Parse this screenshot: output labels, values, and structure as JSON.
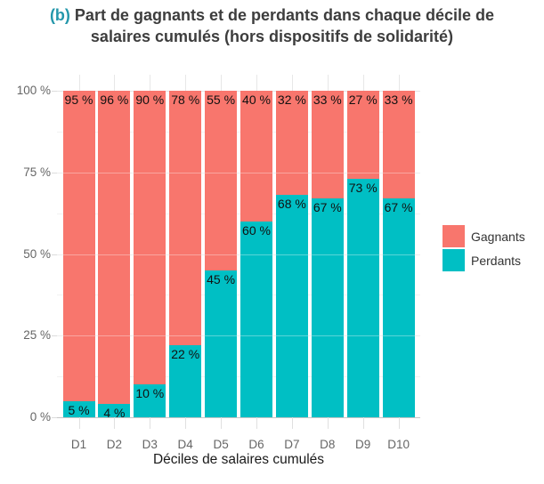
{
  "title": {
    "prefix": "(b)",
    "main": "Part de gagnants et de perdants dans chaque décile de salaires cumulés (hors dispositifs de solidarité)",
    "prefix_color": "#2497ab"
  },
  "chart_data": {
    "type": "bar",
    "stacked": true,
    "orientation": "vertical",
    "categories": [
      "D1",
      "D2",
      "D3",
      "D4",
      "D5",
      "D6",
      "D7",
      "D8",
      "D9",
      "D10"
    ],
    "series": [
      {
        "name": "Gagnants",
        "color": "#F8766D",
        "values": [
          95,
          96,
          90,
          78,
          55,
          40,
          32,
          33,
          27,
          33
        ],
        "labels": [
          "95 %",
          "96 %",
          "90 %",
          "78 %",
          "55 %",
          "40 %",
          "32 %",
          "33 %",
          "27 %",
          "33 %"
        ]
      },
      {
        "name": "Perdants",
        "color": "#00BFC4",
        "values": [
          5,
          4,
          10,
          22,
          45,
          60,
          68,
          67,
          73,
          67
        ],
        "labels": [
          "5 %",
          "4 %",
          "10 %",
          "22 %",
          "45 %",
          "60 %",
          "68 %",
          "67 %",
          "73 %",
          "67 %"
        ]
      }
    ],
    "title": "(b) Part de gagnants et de perdants dans chaque décile de salaires cumulés (hors dispositifs de solidarité)",
    "xlabel": "Déciles de salaires cumulés",
    "ylabel": "",
    "ylim": [
      0,
      100
    ],
    "grid": true,
    "legend_position": "right",
    "y_axis": {
      "ticks": [
        {
          "value": 0,
          "label": "0 %"
        },
        {
          "value": 25,
          "label": "25 %"
        },
        {
          "value": 50,
          "label": "50 %"
        },
        {
          "value": 75,
          "label": "75 %"
        },
        {
          "value": 100,
          "label": "100 %"
        }
      ]
    }
  }
}
